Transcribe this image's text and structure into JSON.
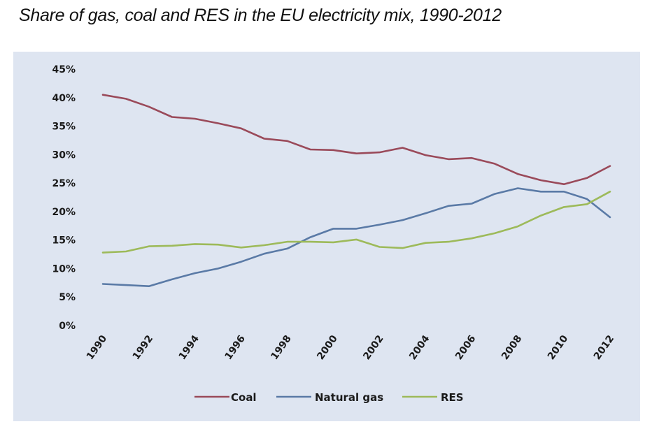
{
  "chart_data": {
    "type": "line",
    "title": "Share of gas, coal and RES in the EU electricity mix, 1990-2012",
    "xlabel": "",
    "ylabel": "",
    "x": [
      1990,
      1991,
      1992,
      1993,
      1994,
      1995,
      1996,
      1997,
      1998,
      1999,
      2000,
      2001,
      2002,
      2003,
      2004,
      2005,
      2006,
      2007,
      2008,
      2009,
      2010,
      2011,
      2012
    ],
    "x_tick_labels": [
      "1990",
      "1992",
      "1994",
      "1996",
      "1998",
      "2000",
      "2002",
      "2004",
      "2006",
      "2008",
      "2010",
      "2012"
    ],
    "y_tick_labels": [
      "0%",
      "5%",
      "10%",
      "15%",
      "20%",
      "25%",
      "30%",
      "35%",
      "40%",
      "45%"
    ],
    "y_ticks": [
      0,
      5,
      10,
      15,
      20,
      25,
      30,
      35,
      40,
      45
    ],
    "ylim": [
      0,
      45
    ],
    "xlim": [
      1990,
      2012
    ],
    "grid": false,
    "legend_position": "bottom",
    "series": [
      {
        "name": "Coal",
        "color": "#9a4a5a",
        "values": [
          40.5,
          39.8,
          38.4,
          36.6,
          36.3,
          35.5,
          34.6,
          32.8,
          32.4,
          30.9,
          30.8,
          30.2,
          30.4,
          31.2,
          29.9,
          29.2,
          29.4,
          28.4,
          26.6,
          25.5,
          24.8,
          25.9,
          28.0
        ]
      },
      {
        "name": "Natural gas",
        "color": "#5a7aa6",
        "values": [
          7.3,
          7.1,
          6.9,
          8.1,
          9.2,
          10.0,
          11.2,
          12.6,
          13.5,
          15.5,
          17.0,
          17.0,
          17.7,
          18.5,
          19.7,
          21.0,
          21.4,
          23.1,
          24.1,
          23.5,
          23.5,
          22.2,
          19.0
        ]
      },
      {
        "name": "RES",
        "color": "#9dba5a",
        "values": [
          12.8,
          13.0,
          13.9,
          14.0,
          14.3,
          14.2,
          13.7,
          14.1,
          14.7,
          14.7,
          14.6,
          15.1,
          13.8,
          13.6,
          14.5,
          14.7,
          15.3,
          16.2,
          17.4,
          19.3,
          20.8,
          21.3,
          23.5
        ]
      }
    ]
  }
}
